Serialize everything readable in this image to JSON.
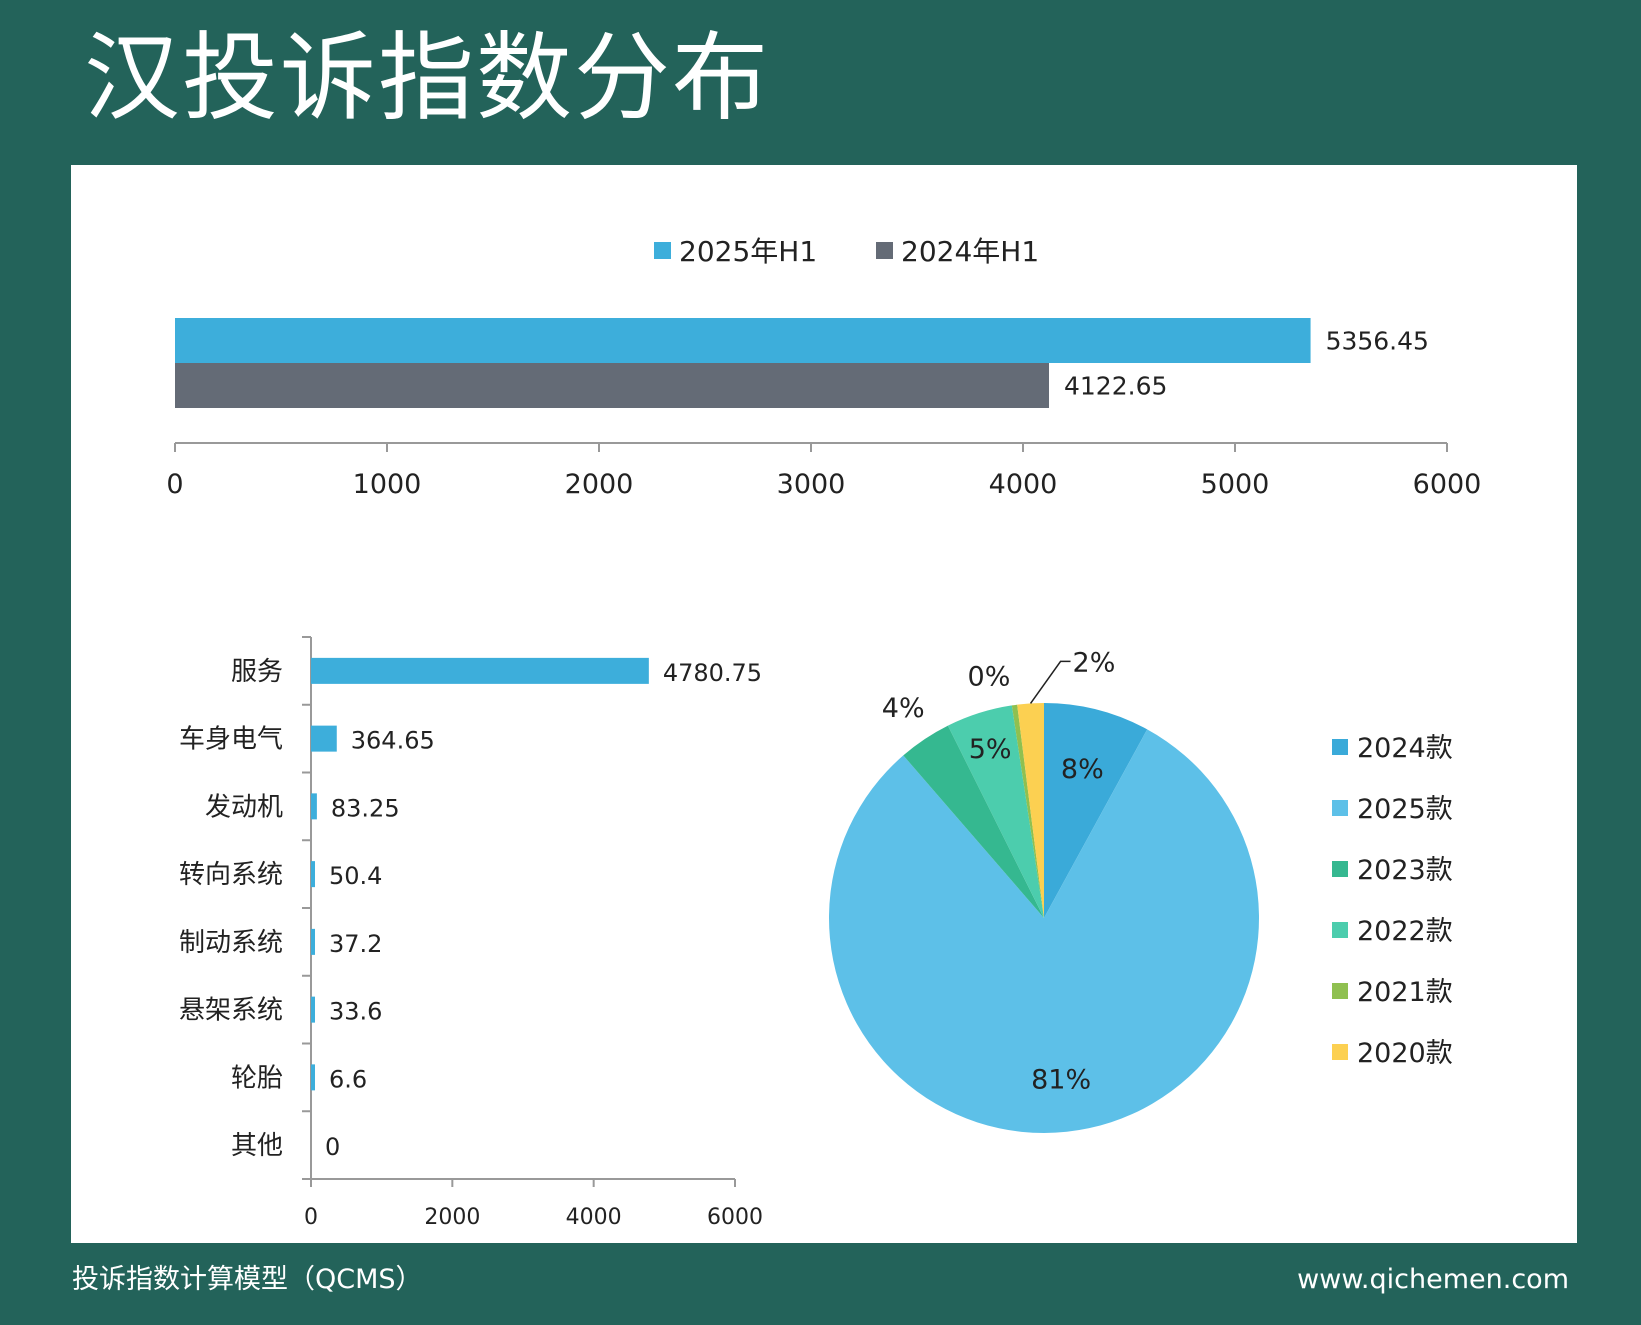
{
  "title": "汉投诉指数分布",
  "footer": {
    "left": "投诉指数计算模型（QCMS）",
    "right": "www.qichemen.com"
  },
  "colors": {
    "background": "#23635a",
    "panel": "#ffffff"
  },
  "chart_data": [
    {
      "type": "bar",
      "orientation": "horizontal",
      "title": "",
      "series": [
        {
          "name": "2025年H1",
          "values": [
            5356.45
          ],
          "labels": [
            "5356.45"
          ],
          "color": "#3daedb"
        },
        {
          "name": "2024年H1",
          "values": [
            4122.65
          ],
          "labels": [
            "4122.65"
          ],
          "color": "#646b76"
        }
      ],
      "xlim": [
        0,
        6000
      ],
      "xticks": [
        "0",
        "1000",
        "2000",
        "3000",
        "4000",
        "5000",
        "6000"
      ],
      "legend_position": "top",
      "grid": false
    },
    {
      "type": "bar",
      "orientation": "horizontal",
      "title": "",
      "categories": [
        "服务",
        "车身电气",
        "发动机",
        "转向系统",
        "制动系统",
        "悬架系统",
        "轮胎",
        "其他"
      ],
      "values": [
        4780.75,
        364.65,
        83.25,
        50.4,
        37.2,
        33.6,
        6.6,
        0
      ],
      "labels": [
        "4780.75",
        "364.65",
        "83.25",
        "50.4",
        "37.2",
        "33.6",
        "6.6",
        "0"
      ],
      "color": "#3daedb",
      "xlim": [
        0,
        6000
      ],
      "xticks": [
        "0",
        "2000",
        "4000",
        "6000"
      ],
      "grid": false
    },
    {
      "type": "pie",
      "title": "",
      "slices": [
        {
          "name": "2024款",
          "value": 8,
          "label": "8%",
          "color": "#3aaad9"
        },
        {
          "name": "2025款",
          "value": 81,
          "label": "81%",
          "color": "#5dc0e8"
        },
        {
          "name": "2023款",
          "value": 4,
          "label": "4%",
          "color": "#35b890"
        },
        {
          "name": "2022款",
          "value": 5,
          "label": "5%",
          "color": "#4ccdad"
        },
        {
          "name": "2021款",
          "value": 0.4,
          "label": "0%",
          "color": "#8fc050"
        },
        {
          "name": "2020款",
          "value": 2,
          "label": "2%",
          "color": "#fcd051"
        }
      ],
      "legend_position": "right"
    }
  ]
}
